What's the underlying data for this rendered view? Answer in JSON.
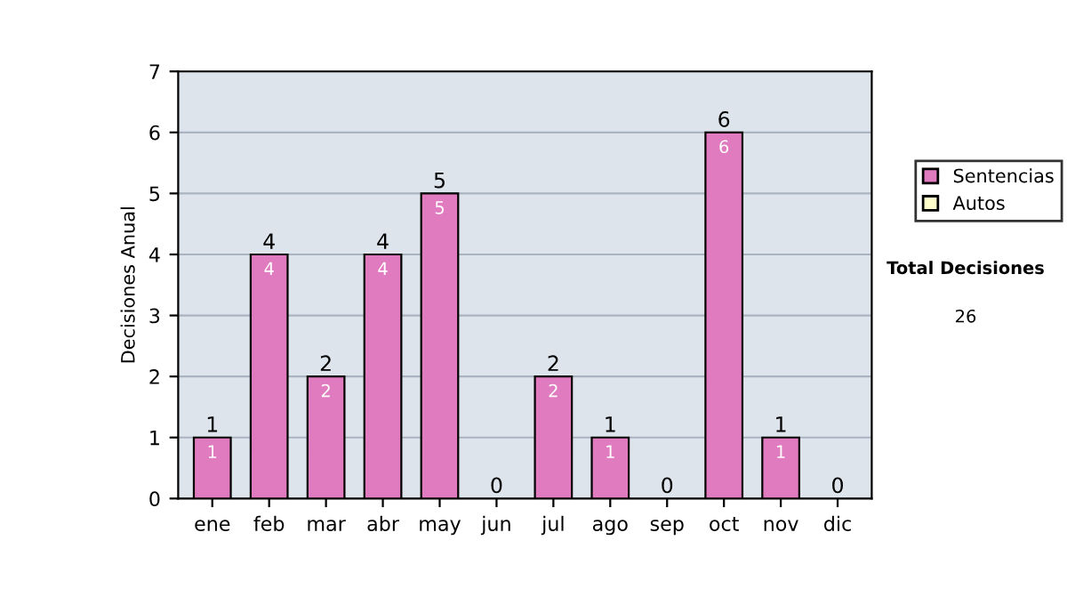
{
  "chart_data": {
    "type": "bar",
    "stacked": true,
    "ylabel": "Decisiones Anual",
    "categories": [
      "ene",
      "feb",
      "mar",
      "abr",
      "may",
      "jun",
      "jul",
      "ago",
      "sep",
      "oct",
      "nov",
      "dic"
    ],
    "series": [
      {
        "name": "Sentencias",
        "color": "#e07bbf",
        "values": [
          1,
          4,
          2,
          4,
          5,
          0,
          2,
          1,
          0,
          6,
          1,
          0
        ],
        "value_labels": [
          "1",
          "4",
          "2",
          "4",
          "5",
          null,
          "2",
          "1",
          null,
          "6",
          "1",
          null
        ]
      },
      {
        "name": "Autos",
        "color": "#ffffcc",
        "values": [
          0,
          0,
          0,
          0,
          0,
          0,
          0,
          0,
          0,
          0,
          0,
          0
        ]
      }
    ],
    "totals": [
      "1",
      "4",
      "2",
      "4",
      "5",
      "0",
      "2",
      "1",
      "0",
      "6",
      "1",
      "0"
    ],
    "ylim": [
      0,
      7
    ],
    "yticks": [
      0,
      1,
      2,
      3,
      4,
      5,
      6,
      7
    ],
    "grid": "y",
    "legend": "right",
    "annotations": [
      "Total Decisiones",
      "26"
    ]
  }
}
